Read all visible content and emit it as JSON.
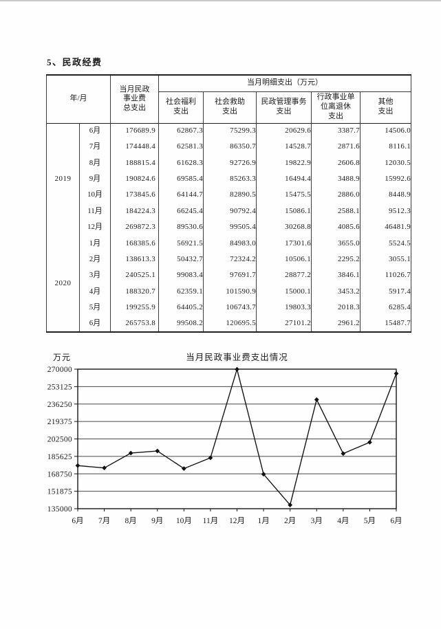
{
  "page": {
    "section_heading": "5、民政经费"
  },
  "table": {
    "header": {
      "year_month": "年/月",
      "total": "当月民政\n事业费\n总支出",
      "detail_group": "当月明细支出（万元）",
      "sub_columns": [
        "社会福利\n支出",
        "社会救助\n支出",
        "民政管理事务\n支出",
        "行政事业单\n位离退休\n支出",
        "其他\n支出"
      ]
    },
    "year_groups": [
      {
        "year": "2019",
        "row_count": 7
      },
      {
        "year": "2020",
        "row_count": 6
      }
    ],
    "rows": [
      {
        "month": "6月",
        "values": [
          "176689.9",
          "62867.3",
          "75299.3",
          "20629.6",
          "3387.7",
          "14506.0"
        ]
      },
      {
        "month": "7月",
        "values": [
          "174448.4",
          "62581.3",
          "86350.7",
          "14528.7",
          "2871.6",
          "8116.1"
        ]
      },
      {
        "month": "8月",
        "values": [
          "188815.4",
          "61628.3",
          "92726.9",
          "19822.9",
          "2606.8",
          "12030.5"
        ]
      },
      {
        "month": "9月",
        "values": [
          "190824.6",
          "69585.4",
          "85263.3",
          "16494.4",
          "3488.9",
          "15992.6"
        ]
      },
      {
        "month": "10月",
        "values": [
          "173845.6",
          "64144.7",
          "82890.5",
          "15475.5",
          "2886.0",
          "8448.9"
        ]
      },
      {
        "month": "11月",
        "values": [
          "184224.3",
          "66245.4",
          "90792.4",
          "15086.1",
          "2588.1",
          "9512.3"
        ]
      },
      {
        "month": "12月",
        "values": [
          "269872.3",
          "89530.6",
          "99505.4",
          "30268.8",
          "4085.6",
          "46481.9"
        ]
      },
      {
        "month": "1月",
        "values": [
          "168385.6",
          "56921.5",
          "84983.0",
          "17301.6",
          "3655.0",
          "5524.5"
        ]
      },
      {
        "month": "2月",
        "values": [
          "138613.3",
          "50432.7",
          "72324.2",
          "10506.1",
          "2295.2",
          "3055.1"
        ]
      },
      {
        "month": "3月",
        "values": [
          "240525.1",
          "99083.4",
          "97691.7",
          "28877.2",
          "3846.1",
          "11026.7"
        ]
      },
      {
        "month": "4月",
        "values": [
          "188320.7",
          "62359.1",
          "101590.9",
          "15000.1",
          "3453.2",
          "5917.4"
        ]
      },
      {
        "month": "5月",
        "values": [
          "199255.9",
          "64405.2",
          "106743.7",
          "19803.3",
          "2018.3",
          "6285.4"
        ]
      },
      {
        "month": "6月",
        "values": [
          "265753.8",
          "99508.2",
          "120695.5",
          "27101.2",
          "2961.2",
          "15487.7"
        ]
      }
    ]
  },
  "chart_data": {
    "type": "line",
    "title": "当月民政事业费支出情况",
    "ylabel": "万元",
    "xlabel": "",
    "categories": [
      "6月",
      "7月",
      "8月",
      "9月",
      "10月",
      "11月",
      "12月",
      "1月",
      "2月",
      "3月",
      "4月",
      "5月",
      "6月"
    ],
    "values": [
      176689.9,
      174448.4,
      188815.4,
      190824.6,
      173845.6,
      184224.3,
      269872.3,
      168385.6,
      138613.3,
      240525.1,
      188320.7,
      199255.9,
      265753.8
    ],
    "ylim": [
      135000,
      270000
    ],
    "yticks": [
      270000,
      253125,
      236250,
      219375,
      202500,
      185625,
      168750,
      151875,
      135000
    ],
    "grid": "horizontal",
    "legend": "none",
    "marker": "diamond",
    "line_color": "#151515",
    "grid_color": "#474747"
  }
}
